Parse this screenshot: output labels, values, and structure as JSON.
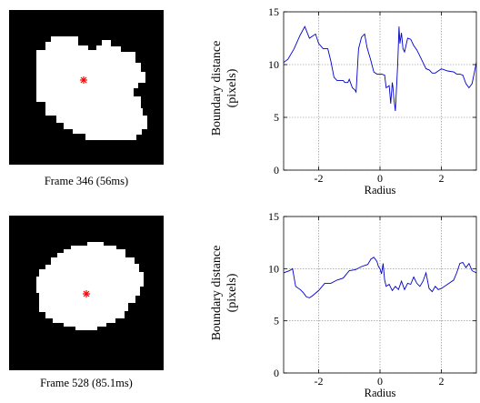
{
  "frames": [
    {
      "caption": "Frame 346 (56ms)"
    },
    {
      "caption": "Frame 528 (85.1ms)"
    }
  ],
  "colors": {
    "series": "#0000cc",
    "centroid": "#ff0000",
    "grid": "#808080"
  },
  "chart_data": [
    {
      "type": "line",
      "ylabel_line1": "Boundary distance",
      "ylabel_line2": "(pixels)",
      "xlabel": "Radius",
      "xlim": [
        -3.14,
        3.14
      ],
      "ylim": [
        0,
        15
      ],
      "xticks": [
        "-2",
        "0",
        "2"
      ],
      "yticks": [
        "0",
        "5",
        "10",
        "15"
      ],
      "grid": true,
      "series": [
        {
          "x": [
            -3.14,
            -3.0,
            -2.8,
            -2.6,
            -2.45,
            -2.3,
            -2.1,
            -2.0,
            -1.85,
            -1.7,
            -1.6,
            -1.5,
            -1.4,
            -1.25,
            -1.2,
            -1.15,
            -1.05,
            -1.0,
            -0.9,
            -0.82,
            -0.78,
            -0.7,
            -0.6,
            -0.5,
            -0.42,
            -0.3,
            -0.2,
            -0.1,
            0.0,
            0.05,
            0.15,
            0.2,
            0.3,
            0.35,
            0.4,
            0.42,
            0.45,
            0.5,
            0.55,
            0.58,
            0.62,
            0.65,
            0.7,
            0.75,
            0.8,
            0.9,
            1.0,
            1.1,
            1.2,
            1.3,
            1.4,
            1.5,
            1.6,
            1.7,
            1.8,
            2.0,
            2.2,
            2.4,
            2.5,
            2.6,
            2.7,
            2.8,
            2.9,
            3.0,
            3.14
          ],
          "y": [
            10.2,
            10.5,
            11.5,
            12.8,
            13.6,
            12.5,
            12.9,
            12.0,
            11.5,
            11.5,
            10.3,
            8.8,
            8.5,
            8.5,
            8.5,
            8.3,
            8.3,
            8.6,
            7.8,
            7.6,
            7.4,
            11.5,
            12.6,
            12.9,
            11.6,
            10.4,
            9.3,
            9.1,
            9.1,
            9.1,
            9.0,
            7.8,
            8.0,
            6.3,
            8.3,
            7.9,
            6.8,
            5.6,
            8.5,
            10.3,
            13.6,
            12.0,
            13.0,
            11.5,
            11.2,
            12.5,
            12.4,
            11.8,
            11.4,
            10.8,
            10.2,
            9.6,
            9.5,
            9.2,
            9.2,
            9.6,
            9.4,
            9.3,
            9.1,
            9.1,
            9.0,
            8.2,
            7.8,
            8.2,
            10.2
          ]
        }
      ]
    },
    {
      "type": "line",
      "ylabel_line1": "Boundary distance",
      "ylabel_line2": "(pixels)",
      "xlabel": "Radius",
      "xlim": [
        -3.14,
        3.14
      ],
      "ylim": [
        0,
        15
      ],
      "xticks": [
        "-2",
        "0",
        "2"
      ],
      "yticks": [
        "0",
        "5",
        "10",
        "15"
      ],
      "grid": true,
      "series": [
        {
          "x": [
            -3.14,
            -2.95,
            -2.85,
            -2.75,
            -2.6,
            -2.5,
            -2.4,
            -2.3,
            -2.2,
            -2.0,
            -1.8,
            -1.6,
            -1.4,
            -1.2,
            -1.0,
            -0.8,
            -0.6,
            -0.4,
            -0.3,
            -0.2,
            -0.1,
            -0.05,
            0.0,
            0.05,
            0.1,
            0.15,
            0.2,
            0.3,
            0.4,
            0.5,
            0.6,
            0.7,
            0.8,
            0.9,
            1.0,
            1.1,
            1.2,
            1.3,
            1.4,
            1.5,
            1.6,
            1.7,
            1.8,
            1.9,
            2.0,
            2.2,
            2.4,
            2.5,
            2.6,
            2.7,
            2.8,
            2.9,
            3.0,
            3.14
          ],
          "y": [
            9.6,
            9.8,
            10.0,
            8.3,
            8.0,
            7.7,
            7.3,
            7.2,
            7.4,
            7.9,
            8.6,
            8.6,
            8.9,
            9.1,
            9.8,
            9.9,
            10.2,
            10.4,
            10.9,
            11.1,
            10.7,
            10.2,
            10.0,
            9.5,
            10.5,
            8.9,
            8.3,
            8.5,
            7.9,
            8.3,
            8.0,
            8.8,
            8.0,
            8.6,
            8.5,
            9.2,
            8.6,
            8.3,
            8.8,
            9.6,
            8.1,
            7.8,
            8.3,
            8.0,
            8.1,
            8.5,
            8.9,
            9.6,
            10.5,
            10.6,
            10.1,
            10.5,
            9.8,
            9.6
          ]
        }
      ]
    }
  ]
}
